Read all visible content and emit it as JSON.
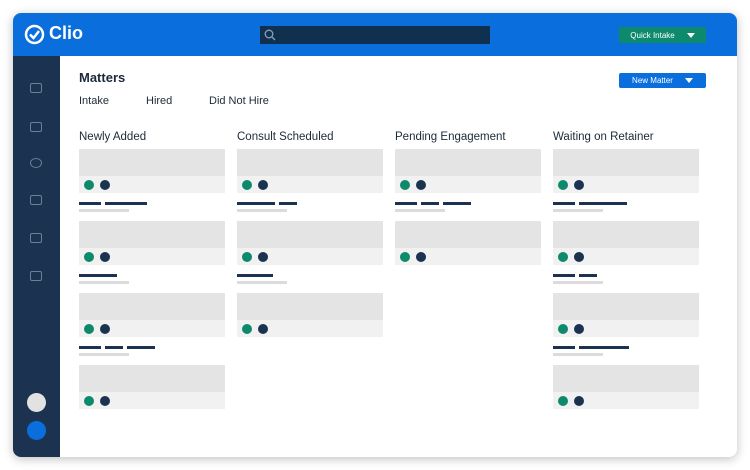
{
  "header": {
    "brand": "Clio",
    "quick_intake": "Quick Intake"
  },
  "page": {
    "title": "Matters",
    "tabs": [
      "Intake",
      "Hired",
      "Did Not Hire"
    ],
    "new_matter": "New Matter"
  },
  "columns": [
    {
      "title": "Newly Added"
    },
    {
      "title": "Consult Scheduled"
    },
    {
      "title": "Pending Engagement"
    },
    {
      "title": "Waiting on Retainer"
    }
  ]
}
